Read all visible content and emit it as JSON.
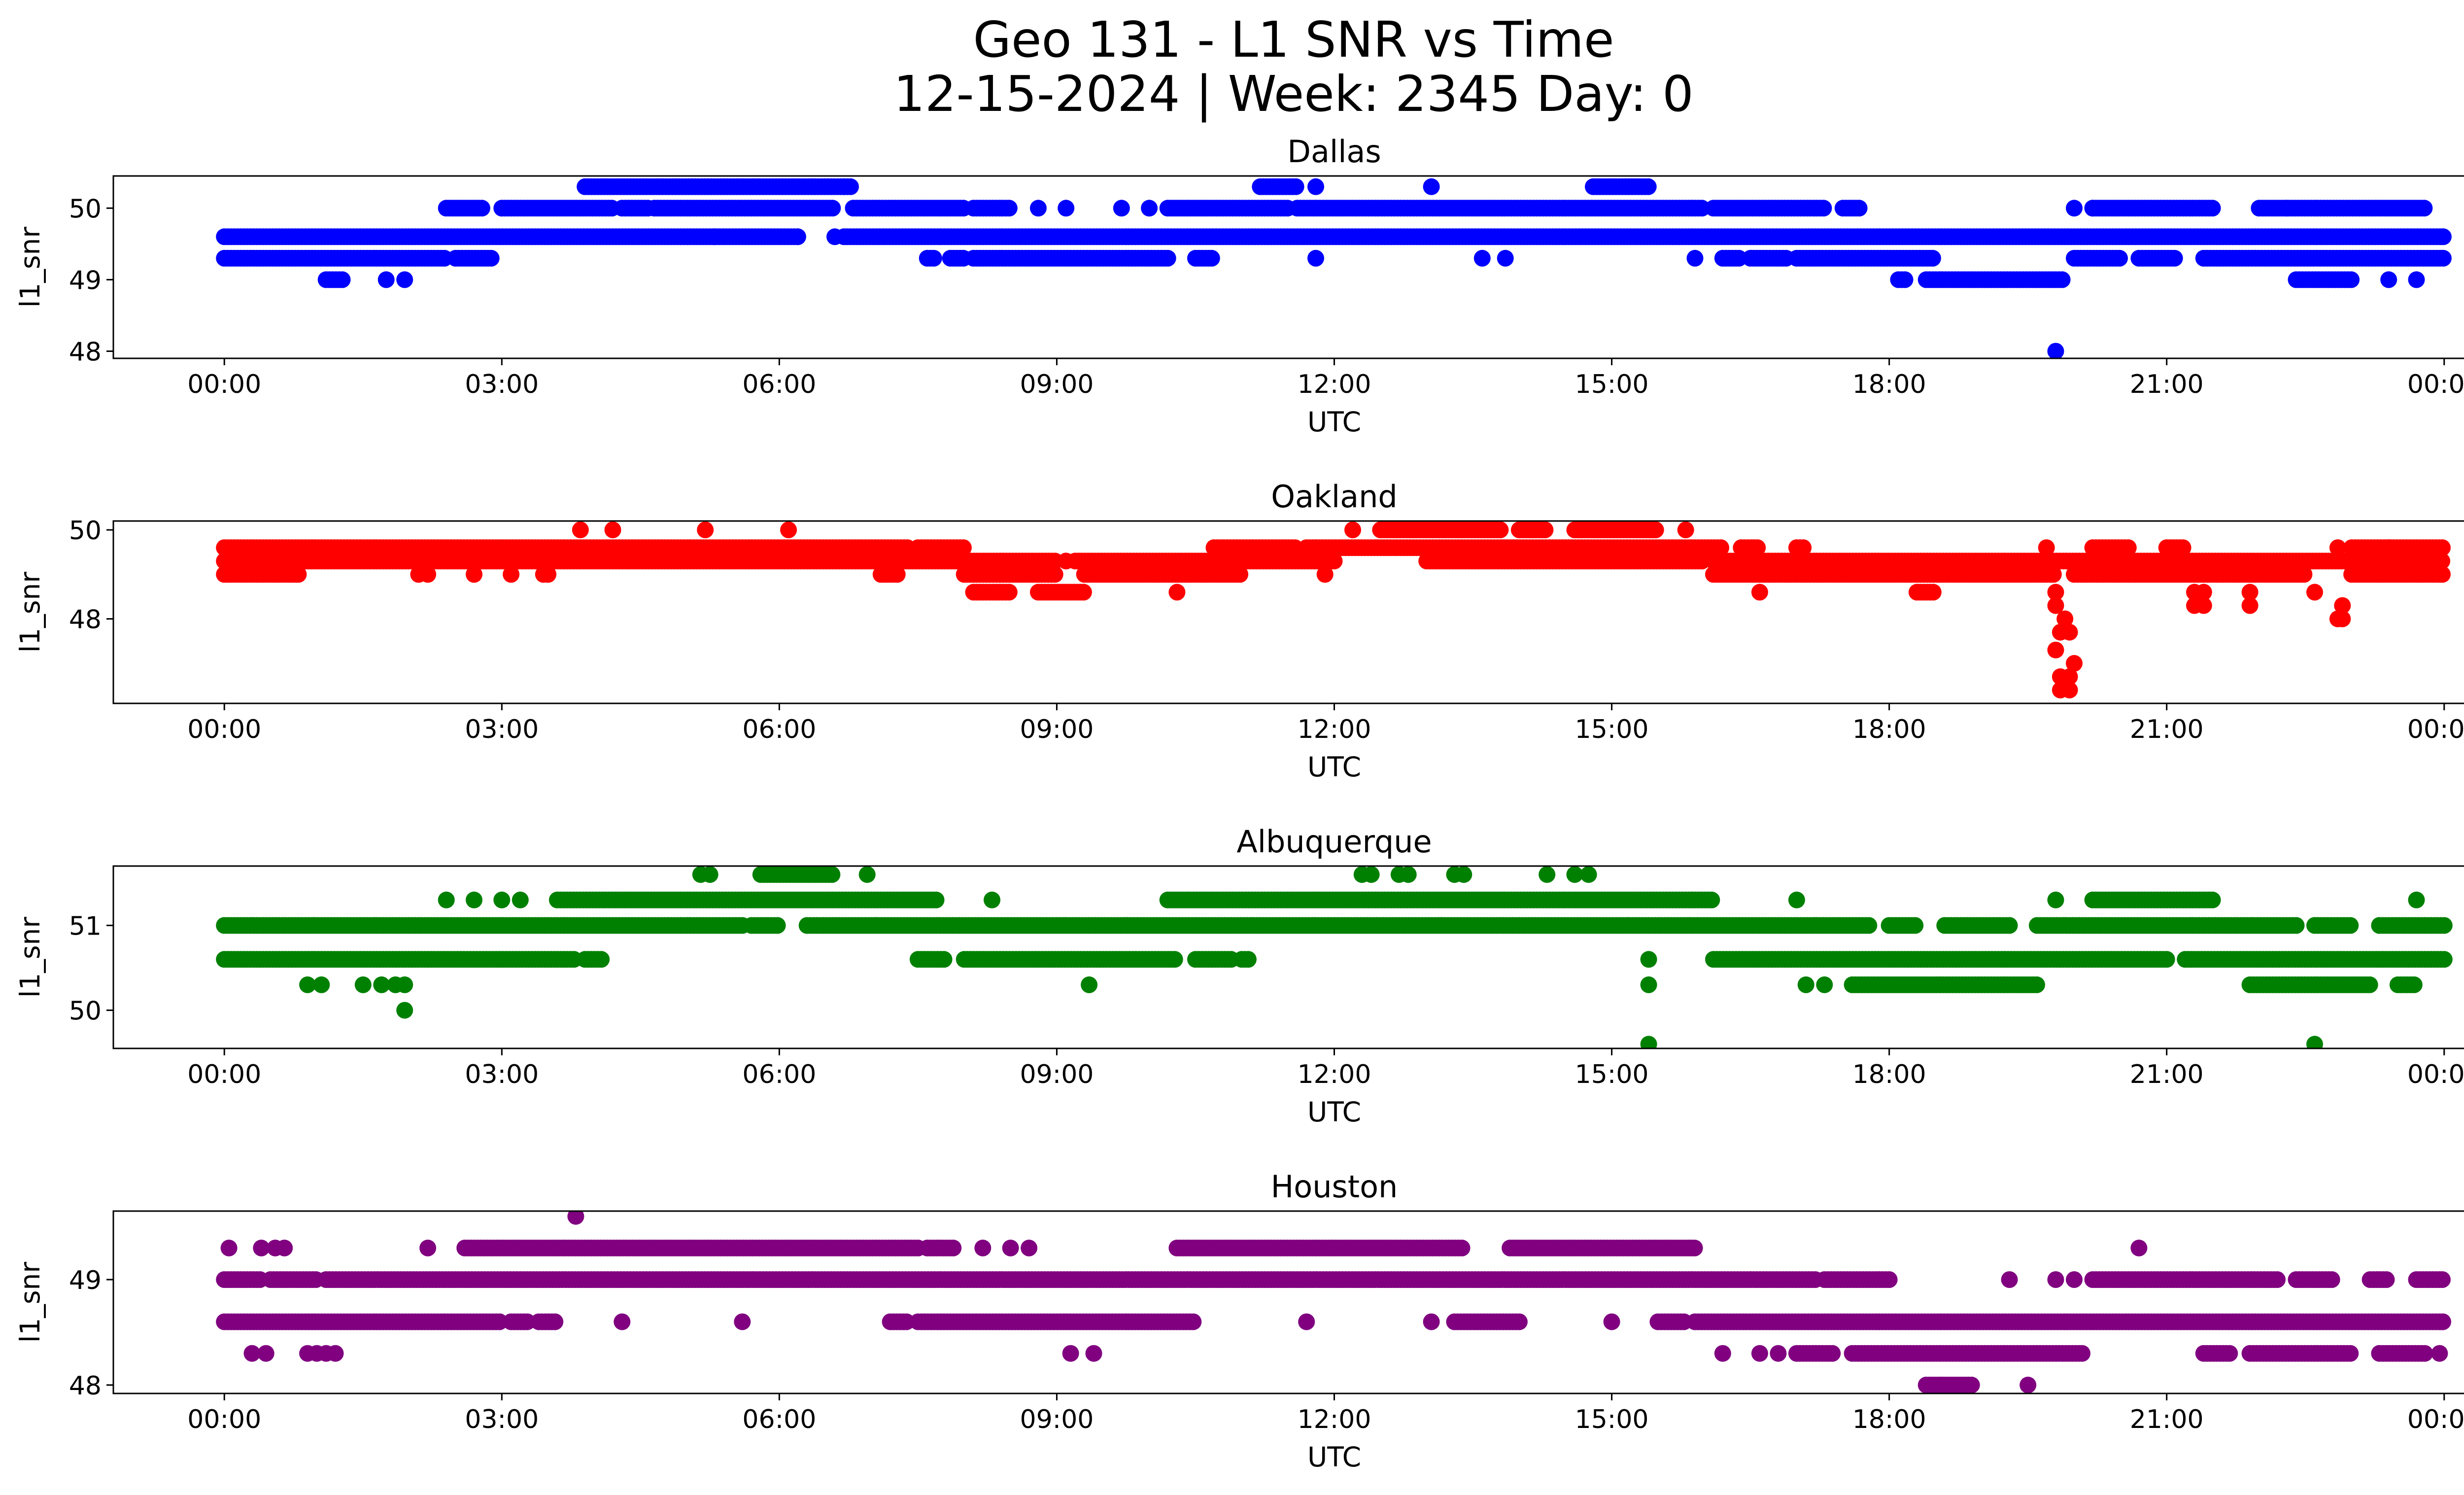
{
  "figure": {
    "title_line1": "Geo 131 - L1 SNR vs Time",
    "title_line2": "12-15-2024 | Week: 2345 Day: 0"
  },
  "chart_data": [
    {
      "type": "scatter",
      "title": "Dallas",
      "xlabel": "UTC",
      "ylabel": "l1_snr",
      "color": "#0000ff",
      "xlim": [
        -1.2,
        25.2
      ],
      "ylim": [
        47.9,
        50.45
      ],
      "xticks": [
        0,
        3,
        6,
        9,
        12,
        15,
        18,
        21,
        24
      ],
      "xtick_labels": [
        "00:00",
        "03:00",
        "06:00",
        "09:00",
        "12:00",
        "15:00",
        "18:00",
        "21:00",
        "00:00"
      ],
      "yticks": [
        48,
        49,
        50
      ],
      "yticks_labels": [
        "48",
        "49",
        "50"
      ],
      "bands": [
        {
          "y": 49.6,
          "ranges": [
            [
              0,
              6.2
            ],
            [
              6.7,
              24
            ]
          ]
        },
        {
          "y": 49.3,
          "ranges": [
            [
              0,
              2.4
            ],
            [
              2.5,
              2.9
            ],
            [
              7.6,
              7.7
            ],
            [
              7.85,
              8.0
            ],
            [
              8.1,
              10.2
            ],
            [
              10.5,
              10.7
            ],
            [
              16.2,
              16.4
            ],
            [
              16.5,
              16.9
            ],
            [
              17.0,
              18.5
            ],
            [
              20.0,
              20.5
            ],
            [
              20.7,
              21.1
            ],
            [
              21.4,
              24
            ]
          ]
        },
        {
          "y": 50.0,
          "ranges": [
            [
              2.4,
              2.8
            ],
            [
              3.0,
              4.2
            ],
            [
              4.3,
              4.6
            ],
            [
              4.65,
              6.6
            ],
            [
              6.8,
              8.0
            ],
            [
              8.1,
              8.5
            ],
            [
              10.2,
              11.5
            ],
            [
              11.6,
              16.0
            ],
            [
              16.1,
              17.3
            ],
            [
              17.5,
              17.7
            ],
            [
              20.2,
              21.5
            ],
            [
              22.0,
              23.8
            ]
          ]
        },
        {
          "y": 50.3,
          "ranges": [
            [
              3.9,
              6.8
            ],
            [
              11.2,
              11.6
            ],
            [
              14.8,
              15.4
            ]
          ]
        },
        {
          "y": 49.0,
          "ranges": [
            [
              1.1,
              1.3
            ],
            [
              18.1,
              18.2
            ],
            [
              18.4,
              19.9
            ],
            [
              22.4,
              23.0
            ]
          ]
        }
      ],
      "points": [
        {
          "x": 1.75,
          "y": 49.0
        },
        {
          "x": 1.95,
          "y": 49.0
        },
        {
          "x": 23.4,
          "y": 49.0
        },
        {
          "x": 23.7,
          "y": 49.0
        },
        {
          "x": 19.8,
          "y": 48.0
        },
        {
          "x": 5.3,
          "y": 49.6
        },
        {
          "x": 6.2,
          "y": 49.6
        },
        {
          "x": 6.6,
          "y": 49.6
        },
        {
          "x": 11.8,
          "y": 49.3
        },
        {
          "x": 13.6,
          "y": 49.3
        },
        {
          "x": 13.85,
          "y": 49.3
        },
        {
          "x": 15.9,
          "y": 49.3
        },
        {
          "x": 8.8,
          "y": 50.0
        },
        {
          "x": 9.1,
          "y": 50.0
        },
        {
          "x": 9.7,
          "y": 50.0
        },
        {
          "x": 10.0,
          "y": 50.0
        },
        {
          "x": 20.0,
          "y": 50.0
        },
        {
          "x": 20.2,
          "y": 50.0
        },
        {
          "x": 22.3,
          "y": 50.0
        },
        {
          "x": 13.05,
          "y": 50.3
        },
        {
          "x": 11.8,
          "y": 50.3
        },
        {
          "x": 6.7,
          "y": 50.3
        }
      ]
    },
    {
      "type": "scatter",
      "title": "Oakland",
      "xlabel": "UTC",
      "ylabel": "l1_snr",
      "color": "#ff0000",
      "xlim": [
        -1.2,
        25.2
      ],
      "ylim": [
        46.1,
        50.2
      ],
      "xticks": [
        0,
        3,
        6,
        9,
        12,
        15,
        18,
        21,
        24
      ],
      "xtick_labels": [
        "00:00",
        "03:00",
        "06:00",
        "09:00",
        "12:00",
        "15:00",
        "18:00",
        "21:00",
        "00:00"
      ],
      "yticks": [
        48,
        50
      ],
      "yticks_labels": [
        "48",
        "50"
      ],
      "bands": [
        {
          "y": 49.6,
          "ranges": [
            [
              0,
              7.4
            ],
            [
              7.5,
              8.0
            ],
            [
              10.7,
              11.6
            ],
            [
              11.7,
              16.2
            ],
            [
              16.4,
              16.6
            ],
            [
              17.0,
              17.1
            ],
            [
              20.2,
              20.6
            ],
            [
              21.0,
              21.2
            ],
            [
              23.0,
              24
            ]
          ]
        },
        {
          "y": 49.3,
          "ranges": [
            [
              0,
              7.2
            ],
            [
              7.3,
              9.0
            ],
            [
              9.2,
              12.0
            ],
            [
              13.0,
              16.0
            ],
            [
              16.1,
              24
            ]
          ]
        },
        {
          "y": 49.0,
          "ranges": [
            [
              0,
              0.8
            ],
            [
              7.1,
              7.3
            ],
            [
              8.0,
              9.0
            ],
            [
              9.3,
              11.0
            ],
            [
              16.1,
              19.8
            ],
            [
              20.0,
              22.5
            ],
            [
              23.0,
              24
            ]
          ]
        },
        {
          "y": 50.0,
          "ranges": [
            [
              12.5,
              13.8
            ],
            [
              14.0,
              14.3
            ],
            [
              14.6,
              15.5
            ]
          ]
        },
        {
          "y": 48.6,
          "ranges": [
            [
              8.1,
              8.5
            ],
            [
              8.8,
              9.3
            ],
            [
              18.3,
              18.5
            ]
          ]
        }
      ],
      "points": [
        {
          "x": 0.8,
          "y": 49.0
        },
        {
          "x": 2.1,
          "y": 49.0
        },
        {
          "x": 2.2,
          "y": 49.0
        },
        {
          "x": 2.7,
          "y": 49.0
        },
        {
          "x": 3.1,
          "y": 49.0
        },
        {
          "x": 3.45,
          "y": 49.0
        },
        {
          "x": 3.5,
          "y": 49.0
        },
        {
          "x": 3.85,
          "y": 50.0
        },
        {
          "x": 4.2,
          "y": 50.0
        },
        {
          "x": 5.2,
          "y": 50.0
        },
        {
          "x": 6.1,
          "y": 50.0
        },
        {
          "x": 12.2,
          "y": 50.0
        },
        {
          "x": 15.8,
          "y": 50.0
        },
        {
          "x": 9.1,
          "y": 49.3
        },
        {
          "x": 10.3,
          "y": 48.6
        },
        {
          "x": 11.9,
          "y": 49.0
        },
        {
          "x": 16.6,
          "y": 48.6
        },
        {
          "x": 19.8,
          "y": 48.6
        },
        {
          "x": 19.8,
          "y": 48.3
        },
        {
          "x": 19.9,
          "y": 48.0
        },
        {
          "x": 19.85,
          "y": 47.7
        },
        {
          "x": 19.95,
          "y": 47.7
        },
        {
          "x": 19.8,
          "y": 47.3
        },
        {
          "x": 20.0,
          "y": 47.0
        },
        {
          "x": 19.85,
          "y": 46.7
        },
        {
          "x": 19.95,
          "y": 46.7
        },
        {
          "x": 19.85,
          "y": 46.4
        },
        {
          "x": 19.95,
          "y": 46.4
        },
        {
          "x": 19.7,
          "y": 49.6
        },
        {
          "x": 21.3,
          "y": 48.6
        },
        {
          "x": 21.4,
          "y": 48.6
        },
        {
          "x": 21.3,
          "y": 48.3
        },
        {
          "x": 21.4,
          "y": 48.3
        },
        {
          "x": 21.9,
          "y": 48.6
        },
        {
          "x": 21.9,
          "y": 48.3
        },
        {
          "x": 22.6,
          "y": 48.6
        },
        {
          "x": 22.9,
          "y": 48.3
        },
        {
          "x": 22.85,
          "y": 48.0
        },
        {
          "x": 22.9,
          "y": 48.0
        },
        {
          "x": 22.85,
          "y": 49.6
        },
        {
          "x": 23.4,
          "y": 49.6
        }
      ]
    },
    {
      "type": "scatter",
      "title": "Albuquerque",
      "xlabel": "UTC",
      "ylabel": "l1_snr",
      "color": "#008000",
      "xlim": [
        -1.2,
        25.2
      ],
      "ylim": [
        49.55,
        51.7
      ],
      "xticks": [
        0,
        3,
        6,
        9,
        12,
        15,
        18,
        21,
        24
      ],
      "xtick_labels": [
        "00:00",
        "03:00",
        "06:00",
        "09:00",
        "12:00",
        "15:00",
        "18:00",
        "21:00",
        "00:00"
      ],
      "yticks": [
        50,
        51
      ],
      "yticks_labels": [
        "50",
        "51"
      ],
      "bands": [
        {
          "y": 51.0,
          "ranges": [
            [
              0,
              5.6
            ],
            [
              5.7,
              6.0
            ],
            [
              6.3,
              17.8
            ],
            [
              18.0,
              18.3
            ],
            [
              18.6,
              19.3
            ],
            [
              19.6,
              22.4
            ],
            [
              22.6,
              23.0
            ],
            [
              23.3,
              24
            ]
          ]
        },
        {
          "y": 50.6,
          "ranges": [
            [
              0,
              3.8
            ],
            [
              3.9,
              4.1
            ],
            [
              7.5,
              7.8
            ],
            [
              8.0,
              10.3
            ],
            [
              10.5,
              10.9
            ],
            [
              11.0,
              11.1
            ],
            [
              16.1,
              21.0
            ],
            [
              21.2,
              24
            ]
          ]
        },
        {
          "y": 51.3,
          "ranges": [
            [
              3.6,
              7.7
            ],
            [
              10.2,
              16.1
            ],
            [
              20.2,
              21.5
            ]
          ]
        },
        {
          "y": 50.3,
          "ranges": [
            [
              17.6,
              19.6
            ],
            [
              21.9,
              23.2
            ],
            [
              23.5,
              23.7
            ]
          ]
        },
        {
          "y": 51.6,
          "ranges": [
            [
              5.8,
              6.6
            ]
          ]
        }
      ],
      "points": [
        {
          "x": 0.9,
          "y": 50.3
        },
        {
          "x": 1.05,
          "y": 50.3
        },
        {
          "x": 1.5,
          "y": 50.3
        },
        {
          "x": 1.7,
          "y": 50.3
        },
        {
          "x": 1.85,
          "y": 50.3
        },
        {
          "x": 1.95,
          "y": 50.3
        },
        {
          "x": 1.95,
          "y": 50.0
        },
        {
          "x": 2.4,
          "y": 51.3
        },
        {
          "x": 2.7,
          "y": 51.3
        },
        {
          "x": 3.0,
          "y": 51.3
        },
        {
          "x": 3.2,
          "y": 51.3
        },
        {
          "x": 5.15,
          "y": 51.6
        },
        {
          "x": 5.25,
          "y": 51.6
        },
        {
          "x": 6.95,
          "y": 51.6
        },
        {
          "x": 8.3,
          "y": 51.3
        },
        {
          "x": 9.35,
          "y": 50.3
        },
        {
          "x": 12.3,
          "y": 51.6
        },
        {
          "x": 12.4,
          "y": 51.6
        },
        {
          "x": 12.7,
          "y": 51.6
        },
        {
          "x": 12.8,
          "y": 51.6
        },
        {
          "x": 13.3,
          "y": 51.6
        },
        {
          "x": 13.4,
          "y": 51.6
        },
        {
          "x": 14.3,
          "y": 51.6
        },
        {
          "x": 14.6,
          "y": 51.6
        },
        {
          "x": 14.75,
          "y": 51.6
        },
        {
          "x": 15.4,
          "y": 50.6
        },
        {
          "x": 15.4,
          "y": 50.3
        },
        {
          "x": 15.4,
          "y": 49.6
        },
        {
          "x": 17.0,
          "y": 51.3
        },
        {
          "x": 17.1,
          "y": 50.3
        },
        {
          "x": 17.3,
          "y": 50.3
        },
        {
          "x": 19.8,
          "y": 51.3
        },
        {
          "x": 23.7,
          "y": 51.3
        },
        {
          "x": 22.6,
          "y": 49.6
        }
      ]
    },
    {
      "type": "scatter",
      "title": "Houston",
      "xlabel": "UTC",
      "ylabel": "l1_snr",
      "color": "#800080",
      "xlim": [
        -1.2,
        25.2
      ],
      "ylim": [
        47.92,
        49.65
      ],
      "xticks": [
        0,
        3,
        6,
        9,
        12,
        15,
        18,
        21,
        24
      ],
      "xtick_labels": [
        "00:00",
        "03:00",
        "06:00",
        "09:00",
        "12:00",
        "15:00",
        "18:00",
        "21:00",
        "00:00"
      ],
      "yticks": [
        48,
        49
      ],
      "yticks_labels": [
        "48",
        "49"
      ],
      "bands": [
        {
          "y": 49.0,
          "ranges": [
            [
              0,
              0.4
            ],
            [
              0.5,
              1.0
            ],
            [
              1.1,
              17.2
            ],
            [
              17.3,
              18.0
            ],
            [
              20.2,
              22.2
            ],
            [
              22.4,
              22.8
            ],
            [
              23.2,
              23.4
            ],
            [
              23.7,
              24
            ]
          ]
        },
        {
          "y": 48.6,
          "ranges": [
            [
              0,
              3.0
            ],
            [
              3.1,
              3.3
            ],
            [
              3.4,
              3.6
            ],
            [
              7.2,
              7.4
            ],
            [
              7.5,
              10.5
            ],
            [
              13.3,
              14.0
            ],
            [
              15.5,
              15.8
            ],
            [
              15.9,
              24
            ]
          ]
        },
        {
          "y": 49.3,
          "ranges": [
            [
              2.6,
              7.5
            ],
            [
              7.6,
              7.9
            ],
            [
              10.3,
              13.4
            ],
            [
              13.9,
              15.9
            ]
          ]
        },
        {
          "y": 48.3,
          "ranges": [
            [
              17.0,
              17.4
            ],
            [
              17.6,
              20.1
            ],
            [
              21.4,
              21.7
            ],
            [
              21.9,
              23.0
            ],
            [
              23.3,
              23.8
            ]
          ]
        },
        {
          "y": 48.0,
          "ranges": [
            [
              18.4,
              18.9
            ]
          ]
        }
      ],
      "points": [
        {
          "x": 0.05,
          "y": 49.3
        },
        {
          "x": 0.4,
          "y": 49.3
        },
        {
          "x": 0.55,
          "y": 49.3
        },
        {
          "x": 0.65,
          "y": 49.3
        },
        {
          "x": 0.3,
          "y": 48.3
        },
        {
          "x": 0.45,
          "y": 48.3
        },
        {
          "x": 0.9,
          "y": 48.3
        },
        {
          "x": 1.0,
          "y": 48.3
        },
        {
          "x": 1.1,
          "y": 48.3
        },
        {
          "x": 1.2,
          "y": 48.3
        },
        {
          "x": 2.2,
          "y": 49.3
        },
        {
          "x": 3.8,
          "y": 49.6
        },
        {
          "x": 4.3,
          "y": 48.6
        },
        {
          "x": 5.6,
          "y": 48.6
        },
        {
          "x": 8.2,
          "y": 49.3
        },
        {
          "x": 8.5,
          "y": 49.3
        },
        {
          "x": 8.7,
          "y": 49.3
        },
        {
          "x": 9.15,
          "y": 48.3
        },
        {
          "x": 9.4,
          "y": 48.3
        },
        {
          "x": 11.7,
          "y": 48.6
        },
        {
          "x": 13.05,
          "y": 48.6
        },
        {
          "x": 15.0,
          "y": 48.6
        },
        {
          "x": 16.2,
          "y": 48.3
        },
        {
          "x": 16.6,
          "y": 48.3
        },
        {
          "x": 16.8,
          "y": 48.3
        },
        {
          "x": 19.5,
          "y": 48.0
        },
        {
          "x": 19.3,
          "y": 49.0
        },
        {
          "x": 19.8,
          "y": 49.0
        },
        {
          "x": 20.0,
          "y": 49.0
        },
        {
          "x": 20.7,
          "y": 49.3
        },
        {
          "x": 23.95,
          "y": 48.3
        }
      ]
    }
  ]
}
